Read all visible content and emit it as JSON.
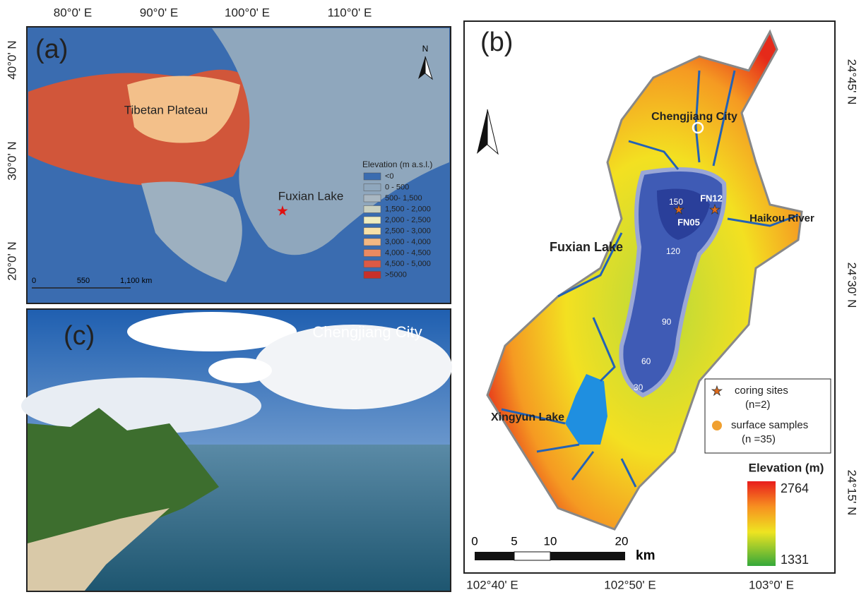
{
  "panel_a": {
    "label": "(a)",
    "lon_labels": [
      "80°0' E",
      "90°0' E",
      "100°0' E",
      "110°0' E"
    ],
    "lat_labels": [
      "40°0' N",
      "30°0' N",
      "20°0' N"
    ],
    "region_label": "Tibetan Plateau",
    "lake_label": "Fuxian Lake",
    "north": "N",
    "legend": {
      "title": "Elevation (m a.s.l.)",
      "items": [
        "<0",
        "0 - 500",
        "500- 1,500",
        "1,500 - 2,000",
        "2,000 - 2,500",
        "2,500 - 3,000",
        "3,000 - 4,000",
        "4,000 - 4,500",
        "4,500 - 5,000",
        ">5000"
      ]
    },
    "scale": [
      "0",
      "550",
      "1,100 km"
    ]
  },
  "panel_b": {
    "label": "(b)",
    "city_label": "Chengjiang City",
    "sites": [
      "FN12",
      "FN05"
    ],
    "river_label": "Haikou River",
    "lake_label": "Fuxian Lake",
    "lake2_label": "Xingyun Lake",
    "contours": [
      "150",
      "120",
      "90",
      "60",
      "30"
    ],
    "legend": [
      "coring sites",
      "(n=2)",
      "surface samples",
      "(n =35)"
    ],
    "elevation_title": "Elevation (m)",
    "elevation_max": "2764",
    "elevation_min": "1331",
    "scale": [
      "0",
      "5",
      "10",
      "20",
      "km"
    ],
    "lon_labels": [
      "102°40' E",
      "102°50' E",
      "103°0' E"
    ],
    "lat_labels": [
      "24°45' N",
      "24°30' N",
      "24°15' N"
    ]
  },
  "panel_c": {
    "label": "(c)",
    "caption": "Chengjiang City"
  }
}
